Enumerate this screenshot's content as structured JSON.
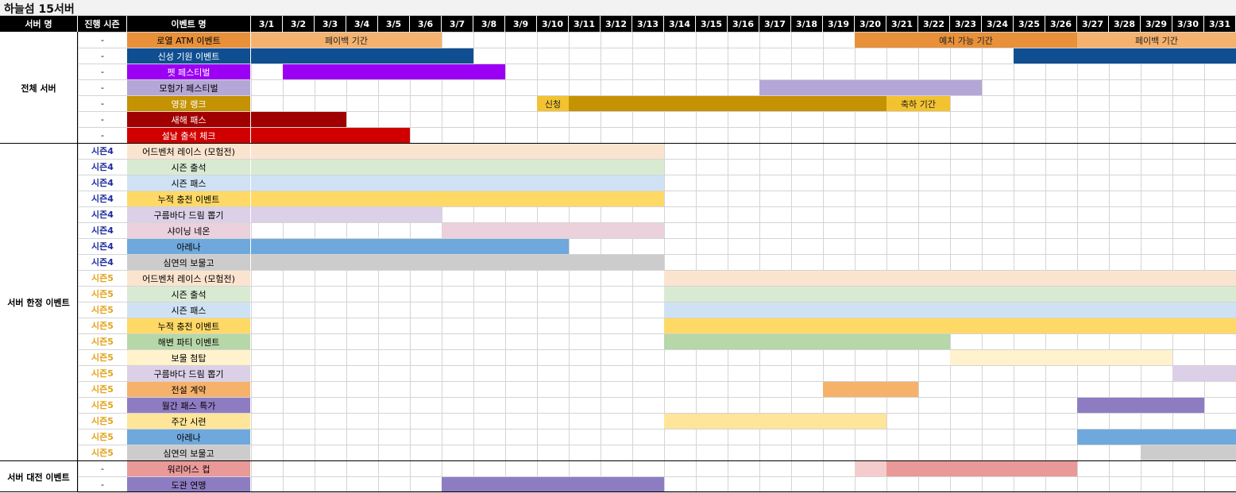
{
  "title": "하늘섬 15서버",
  "headers": {
    "server": "서버 명",
    "season": "진행 시즌",
    "event": "이벤트 명"
  },
  "dates": [
    "3/1",
    "3/2",
    "3/3",
    "3/4",
    "3/5",
    "3/6",
    "3/7",
    "3/8",
    "3/9",
    "3/10",
    "3/11",
    "3/12",
    "3/13",
    "3/14",
    "3/15",
    "3/16",
    "3/17",
    "3/18",
    "3/19",
    "3/20",
    "3/21",
    "3/22",
    "3/23",
    "3/24",
    "3/25",
    "3/26",
    "3/27",
    "3/28",
    "3/29",
    "3/30",
    "3/31"
  ],
  "groups": [
    {
      "label": "전체 서버",
      "start": 0,
      "end": 6
    },
    {
      "label": "서버 한정 이벤트",
      "start": 7,
      "end": 26
    },
    {
      "label": "서버 대전 이벤트",
      "start": 27,
      "end": 28
    }
  ],
  "season_colors": {
    "-": "#000000",
    "시즌4": "#1f2d9c",
    "시즌5": "#e3a21a"
  },
  "rows": [
    {
      "season": "-",
      "name": "로열 ATM 이벤트",
      "name_bg": "#e8903a",
      "name_color": "#000000",
      "bars": [
        {
          "s": 1,
          "e": 6,
          "color": "#f4b26e",
          "label": "페이백 기간"
        },
        {
          "s": 20,
          "e": 26,
          "color": "#e8903a",
          "label": "예치 가능 기간"
        },
        {
          "s": 27,
          "e": 31,
          "color": "#f4b26e",
          "label": "페이백 기간"
        }
      ]
    },
    {
      "season": "-",
      "name": "신성 기원 이벤트",
      "name_bg": "#0f4f91",
      "name_color": "#ffffff",
      "bars": [
        {
          "s": 1,
          "e": 7,
          "color": "#0f4f91",
          "label": ""
        },
        {
          "s": 25,
          "e": 31,
          "color": "#0f4f91",
          "label": ""
        }
      ]
    },
    {
      "season": "-",
      "name": "펫 페스티벌",
      "name_bg": "#9b00f5",
      "name_color": "#ffffff",
      "bars": [
        {
          "s": 2,
          "e": 8,
          "color": "#9b00f5",
          "label": ""
        }
      ]
    },
    {
      "season": "-",
      "name": "모험가 페스티벌",
      "name_bg": "#b4a6d6",
      "name_color": "#000000",
      "bars": [
        {
          "s": 17,
          "e": 23,
          "color": "#b4a6d6",
          "label": ""
        }
      ]
    },
    {
      "season": "-",
      "name": "영광 랭크",
      "name_bg": "#c49202",
      "name_color": "#ffffff",
      "bars": [
        {
          "s": 10,
          "e": 10,
          "color": "#f2c230",
          "label": "신청"
        },
        {
          "s": 11,
          "e": 20,
          "color": "#c49202",
          "label": ""
        },
        {
          "s": 21,
          "e": 22,
          "color": "#f2c230",
          "label": "축하 기간"
        }
      ]
    },
    {
      "season": "-",
      "name": "새해 패스",
      "name_bg": "#a00000",
      "name_color": "#ffffff",
      "bars": [
        {
          "s": 1,
          "e": 3,
          "color": "#a00000",
          "label": ""
        }
      ]
    },
    {
      "season": "-",
      "name": "설날 출석 체크",
      "name_bg": "#d10000",
      "name_color": "#ffffff",
      "bars": [
        {
          "s": 1,
          "e": 5,
          "color": "#d10000",
          "label": ""
        }
      ]
    },
    {
      "season": "시즌4",
      "name": "어드벤처 레이스 (모험전)",
      "name_bg": "#fbe4cf",
      "name_color": "#000000",
      "bars": [
        {
          "s": 1,
          "e": 13,
          "color": "#fbe4cf",
          "label": ""
        }
      ]
    },
    {
      "season": "시즌4",
      "name": "시즌 출석",
      "name_bg": "#d9ead3",
      "name_color": "#000000",
      "bars": [
        {
          "s": 1,
          "e": 13,
          "color": "#d9ead3",
          "label": ""
        }
      ]
    },
    {
      "season": "시즌4",
      "name": "시즌 패스",
      "name_bg": "#cfe2f3",
      "name_color": "#000000",
      "bars": [
        {
          "s": 1,
          "e": 13,
          "color": "#cfe2f3",
          "label": ""
        }
      ]
    },
    {
      "season": "시즌4",
      "name": "누적 충전 이벤트",
      "name_bg": "#ffd966",
      "name_color": "#000000",
      "bars": [
        {
          "s": 1,
          "e": 13,
          "color": "#ffd966",
          "label": ""
        }
      ]
    },
    {
      "season": "시즌4",
      "name": "구름바다 드림 뽑기",
      "name_bg": "#dcd0e8",
      "name_color": "#000000",
      "bars": [
        {
          "s": 1,
          "e": 6,
          "color": "#dcd0e8",
          "label": ""
        }
      ]
    },
    {
      "season": "시즌4",
      "name": "샤이닝 네온",
      "name_bg": "#ead1dc",
      "name_color": "#000000",
      "bars": [
        {
          "s": 7,
          "e": 13,
          "color": "#ead1dc",
          "label": ""
        }
      ]
    },
    {
      "season": "시즌4",
      "name": "아레나",
      "name_bg": "#6fa8dc",
      "name_color": "#000000",
      "bars": [
        {
          "s": 1,
          "e": 10,
          "color": "#6fa8dc",
          "label": ""
        }
      ]
    },
    {
      "season": "시즌4",
      "name": "심연의 보물고",
      "name_bg": "#cccccc",
      "name_color": "#000000",
      "bars": [
        {
          "s": 1,
          "e": 13,
          "color": "#cccccc",
          "label": ""
        }
      ]
    },
    {
      "season": "시즌5",
      "name": "어드벤처 레이스 (모험전)",
      "name_bg": "#fbe4cf",
      "name_color": "#000000",
      "bars": [
        {
          "s": 14,
          "e": 31,
          "color": "#fbe4cf",
          "label": ""
        }
      ]
    },
    {
      "season": "시즌5",
      "name": "시즌 출석",
      "name_bg": "#d9ead3",
      "name_color": "#000000",
      "bars": [
        {
          "s": 14,
          "e": 31,
          "color": "#d9ead3",
          "label": ""
        }
      ]
    },
    {
      "season": "시즌5",
      "name": "시즌 패스",
      "name_bg": "#cfe2f3",
      "name_color": "#000000",
      "bars": [
        {
          "s": 14,
          "e": 31,
          "color": "#cfe2f3",
          "label": ""
        }
      ]
    },
    {
      "season": "시즌5",
      "name": "누적 충전 이벤트",
      "name_bg": "#ffd966",
      "name_color": "#000000",
      "bars": [
        {
          "s": 14,
          "e": 31,
          "color": "#ffd966",
          "label": ""
        }
      ]
    },
    {
      "season": "시즌5",
      "name": "해변 파티 이벤트",
      "name_bg": "#b6d7a8",
      "name_color": "#000000",
      "bars": [
        {
          "s": 14,
          "e": 22,
          "color": "#b6d7a8",
          "label": ""
        }
      ]
    },
    {
      "season": "시즌5",
      "name": "보물 첨탑",
      "name_bg": "#fff2cc",
      "name_color": "#000000",
      "bars": [
        {
          "s": 23,
          "e": 29,
          "color": "#fff2cc",
          "label": ""
        }
      ]
    },
    {
      "season": "시즌5",
      "name": "구름바다 드림 뽑기",
      "name_bg": "#dcd0e8",
      "name_color": "#000000",
      "bars": [
        {
          "s": 30,
          "e": 31,
          "color": "#dcd0e8",
          "label": ""
        }
      ]
    },
    {
      "season": "시즌5",
      "name": "전설 계약",
      "name_bg": "#f6b26b",
      "name_color": "#000000",
      "bars": [
        {
          "s": 19,
          "e": 21,
          "color": "#f6b26b",
          "label": ""
        }
      ]
    },
    {
      "season": "시즌5",
      "name": "월간 패스 특가",
      "name_bg": "#8e7cc3",
      "name_color": "#000000",
      "bars": [
        {
          "s": 27,
          "e": 30,
          "color": "#8e7cc3",
          "label": ""
        }
      ]
    },
    {
      "season": "시즌5",
      "name": "주간 시련",
      "name_bg": "#ffe599",
      "name_color": "#000000",
      "bars": [
        {
          "s": 14,
          "e": 20,
          "color": "#ffe599",
          "label": ""
        }
      ]
    },
    {
      "season": "시즌5",
      "name": "아레나",
      "name_bg": "#6fa8dc",
      "name_color": "#000000",
      "bars": [
        {
          "s": 27,
          "e": 31,
          "color": "#6fa8dc",
          "label": ""
        }
      ]
    },
    {
      "season": "시즌5",
      "name": "심연의 보물고",
      "name_bg": "#cccccc",
      "name_color": "#000000",
      "bars": [
        {
          "s": 29,
          "e": 31,
          "color": "#cccccc",
          "label": ""
        }
      ]
    },
    {
      "season": "-",
      "name": "워리어스 컵",
      "name_bg": "#ea9999",
      "name_color": "#000000",
      "bars": [
        {
          "s": 20,
          "e": 20,
          "color": "#f4cccc",
          "label": ""
        },
        {
          "s": 21,
          "e": 26,
          "color": "#ea9999",
          "label": ""
        }
      ]
    },
    {
      "season": "-",
      "name": "도관 연맹",
      "name_bg": "#8e7cc3",
      "name_color": "#000000",
      "bars": [
        {
          "s": 7,
          "e": 13,
          "color": "#8e7cc3",
          "label": ""
        }
      ]
    }
  ]
}
